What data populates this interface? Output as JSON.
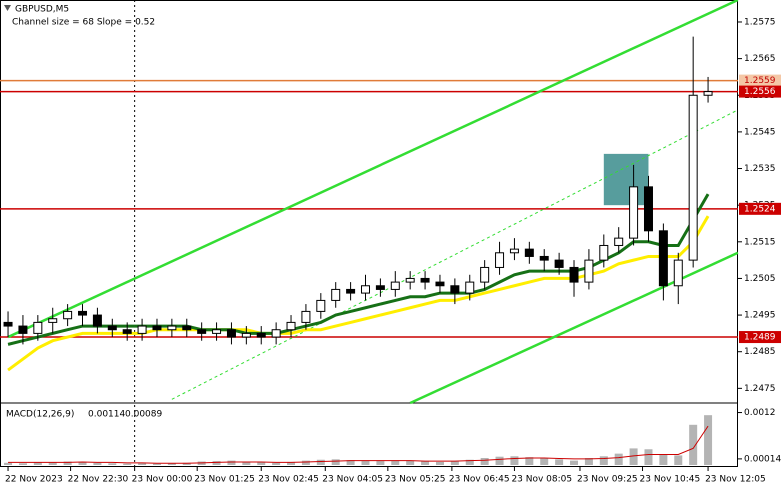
{
  "chart_data": [
    {
      "type": "candlestick",
      "title": "GBPUSD,M5",
      "subtitle": "Channel size = 68 Slope = 0.52",
      "xlim": [
        -0.54,
        49.01
      ],
      "ylim": [
        1.2471,
        1.2581
      ],
      "xticks": [
        {
          "value": 0,
          "label": "22 Nov 2023"
        },
        {
          "value": 4.2,
          "label": "22 Nov 22:30"
        },
        {
          "value": 8.5,
          "label": "23 Nov 00:00"
        },
        {
          "value": 12.7,
          "label": "23 Nov 01:25"
        },
        {
          "value": 17,
          "label": "23 Nov 02:45"
        },
        {
          "value": 21.3,
          "label": "23 Nov 04:05"
        },
        {
          "value": 25.5,
          "label": "23 Nov 05:25"
        },
        {
          "value": 29.8,
          "label": "23 Nov 06:45"
        },
        {
          "value": 34,
          "label": "23 Nov 08:05"
        },
        {
          "value": 38.4,
          "label": "23 Nov 09:25"
        },
        {
          "value": 42.6,
          "label": "23 Nov 10:45"
        },
        {
          "value": 47,
          "label": "23 Nov 12:05"
        }
      ],
      "yticks": [
        1.2475,
        1.2485,
        1.2495,
        1.2505,
        1.2515,
        1.2525,
        1.2535,
        1.2545,
        1.2555,
        1.2565,
        1.2575
      ],
      "open": [
        1.2493,
        1.2492,
        1.249,
        1.2493,
        1.2494,
        1.2496,
        1.2495,
        1.2492,
        1.2491,
        1.249,
        1.2492,
        1.2491,
        1.2492,
        1.2491,
        1.249,
        1.2491,
        1.2489,
        1.249,
        1.2489,
        1.2491,
        1.2493,
        1.2496,
        1.2499,
        1.2502,
        1.2501,
        1.2503,
        1.2502,
        1.2504,
        1.2505,
        1.2504,
        1.2503,
        1.2501,
        1.2504,
        1.2508,
        1.2512,
        1.2513,
        1.2511,
        1.251,
        1.2508,
        1.2504,
        1.251,
        1.2514,
        1.2516,
        1.253,
        1.2518,
        1.2503,
        1.251,
        1.2555
      ],
      "high": [
        1.2496,
        1.2495,
        1.2495,
        1.2497,
        1.2498,
        1.2498,
        1.2497,
        1.2494,
        1.2493,
        1.2494,
        1.2494,
        1.2494,
        1.2494,
        1.2493,
        1.2493,
        1.2493,
        1.2492,
        1.2492,
        1.2493,
        1.2495,
        1.2498,
        1.2501,
        1.2504,
        1.2504,
        1.2506,
        1.2505,
        1.2507,
        1.2507,
        1.2507,
        1.2506,
        1.2505,
        1.2506,
        1.251,
        1.2515,
        1.2516,
        1.2515,
        1.2513,
        1.2512,
        1.251,
        1.2513,
        1.2517,
        1.2519,
        1.2536,
        1.2533,
        1.252,
        1.2512,
        1.2571,
        1.256
      ],
      "low": [
        1.2489,
        1.2487,
        1.2488,
        1.249,
        1.2492,
        1.2492,
        1.249,
        1.2489,
        1.2488,
        1.2488,
        1.2489,
        1.2489,
        1.2489,
        1.2488,
        1.2488,
        1.2487,
        1.2487,
        1.2487,
        1.2487,
        1.2489,
        1.2491,
        1.2494,
        1.2497,
        1.2499,
        1.2499,
        1.25,
        1.25,
        1.2502,
        1.2502,
        1.2501,
        1.2498,
        1.2499,
        1.2502,
        1.2506,
        1.251,
        1.2509,
        1.2507,
        1.2506,
        1.25,
        1.2502,
        1.2508,
        1.2512,
        1.2514,
        1.2515,
        1.2499,
        1.2498,
        1.2508,
        1.2553
      ],
      "close": [
        1.2492,
        1.249,
        1.2493,
        1.2494,
        1.2496,
        1.2495,
        1.2492,
        1.2491,
        1.249,
        1.2492,
        1.2491,
        1.2492,
        1.2491,
        1.249,
        1.2491,
        1.2489,
        1.249,
        1.2489,
        1.2491,
        1.2493,
        1.2496,
        1.2499,
        1.2502,
        1.2501,
        1.2503,
        1.2502,
        1.2504,
        1.2505,
        1.2504,
        1.2503,
        1.2501,
        1.2504,
        1.2508,
        1.2512,
        1.2513,
        1.2511,
        1.251,
        1.2508,
        1.2504,
        1.251,
        1.2514,
        1.2516,
        1.253,
        1.2518,
        1.2503,
        1.251,
        1.2555,
        1.2556
      ],
      "overlays": [
        {
          "color": "#ffee00",
          "values": [
            1.248,
            1.2483,
            1.2486,
            1.2488,
            1.2489,
            1.249,
            1.249,
            1.249,
            1.249,
            1.249,
            1.2491,
            1.2491,
            1.2491,
            1.2491,
            1.2491,
            1.2491,
            1.2491,
            1.249,
            1.249,
            1.249,
            1.2491,
            1.2491,
            1.2492,
            1.2493,
            1.2494,
            1.2495,
            1.2496,
            1.2497,
            1.2498,
            1.2499,
            1.2499,
            1.25,
            1.2501,
            1.2502,
            1.2503,
            1.2504,
            1.2505,
            1.2505,
            1.2505,
            1.2506,
            1.2507,
            1.2509,
            1.251,
            1.2511,
            1.2511,
            1.2511,
            1.2515,
            1.2522
          ]
        },
        {
          "color": "#167016",
          "values": [
            1.2487,
            1.2488,
            1.2489,
            1.249,
            1.2491,
            1.2492,
            1.2492,
            1.2492,
            1.2492,
            1.2492,
            1.2492,
            1.2492,
            1.2492,
            1.2491,
            1.2491,
            1.2491,
            1.249,
            1.249,
            1.249,
            1.2491,
            1.2492,
            1.2493,
            1.2495,
            1.2496,
            1.2497,
            1.2498,
            1.2499,
            1.25,
            1.25,
            1.2501,
            1.2501,
            1.2501,
            1.2502,
            1.2504,
            1.2506,
            1.2507,
            1.2507,
            1.2507,
            1.2507,
            1.2508,
            1.251,
            1.2512,
            1.2515,
            1.2515,
            1.2514,
            1.2514,
            1.2521,
            1.2528
          ]
        }
      ],
      "trend_lines": [
        {
          "color": "#33dd33",
          "start": [
            0,
            1.2489
          ],
          "end": [
            49,
            1.2581
          ]
        },
        {
          "color": "#33dd33",
          "start": [
            27,
            1.2471
          ],
          "end": [
            49,
            1.2512
          ]
        },
        {
          "color": "#33dd33",
          "dashed": true,
          "start": [
            11,
            1.2472
          ],
          "end": [
            49,
            1.2551
          ]
        }
      ],
      "zones": [
        {
          "color": "#3a8c8c",
          "x": [
            40,
            43
          ],
          "y": [
            1.2525,
            1.2539
          ]
        }
      ],
      "levels": [
        {
          "value": 1.2559,
          "color": "#e07b39",
          "label_color": "#f4c7a6",
          "text_color": "#c00000"
        },
        {
          "value": 1.2556,
          "color": "#cc0000",
          "label_color": "#cc0000",
          "text_color": "#ffffff"
        },
        {
          "value": 1.2524,
          "color": "#cc0000",
          "label_color": "#cc0000",
          "text_color": "#ffffff"
        },
        {
          "value": 1.2489,
          "color": "#cc0000",
          "label_color": "#cc0000",
          "text_color": "#ffffff"
        }
      ]
    },
    {
      "type": "macd",
      "title": "MACD(12,26,9)",
      "ylim": [
        0,
        0.00135
      ],
      "yticks": [
        0.0012,
        0.00014
      ],
      "series": [
        {
          "type": "bar",
          "color": "#b4b4b4",
          "values": [
            5e-05,
            4e-05,
            6e-05,
            6e-05,
            8e-05,
            7e-05,
            5e-05,
            4e-05,
            3e-05,
            4e-05,
            3e-05,
            4e-05,
            5e-05,
            8e-05,
            9e-05,
            0.0001,
            8e-05,
            6e-05,
            5e-05,
            7e-05,
            0.0001,
            0.00012,
            0.00013,
            0.00011,
            0.0001,
            9e-05,
            0.0001,
            0.0001,
            8e-05,
            7e-05,
            9e-05,
            0.00012,
            0.00016,
            0.00019,
            0.0002,
            0.00018,
            0.00015,
            0.00013,
            0.0001,
            0.00016,
            0.0002,
            0.00026,
            0.00038,
            0.00036,
            0.00025,
            0.00022,
            0.00092,
            0.00114
          ]
        },
        {
          "type": "line",
          "color": "#cc0000",
          "values": [
            6e-05,
            6e-05,
            6e-05,
            6e-05,
            6e-05,
            7e-05,
            6e-05,
            6e-05,
            5e-05,
            5e-05,
            4e-05,
            4e-05,
            4e-05,
            5e-05,
            6e-05,
            7e-05,
            7e-05,
            7e-05,
            6e-05,
            6e-05,
            7e-05,
            8e-05,
            9e-05,
            0.0001,
            0.0001,
            0.0001,
            0.0001,
            0.0001,
            9e-05,
            9e-05,
            9e-05,
            0.0001,
            0.00011,
            0.00013,
            0.00015,
            0.00016,
            0.00016,
            0.00015,
            0.00014,
            0.00014,
            0.00015,
            0.00017,
            0.00021,
            0.00024,
            0.00024,
            0.00024,
            0.00038,
            0.00089
          ]
        }
      ]
    }
  ]
}
